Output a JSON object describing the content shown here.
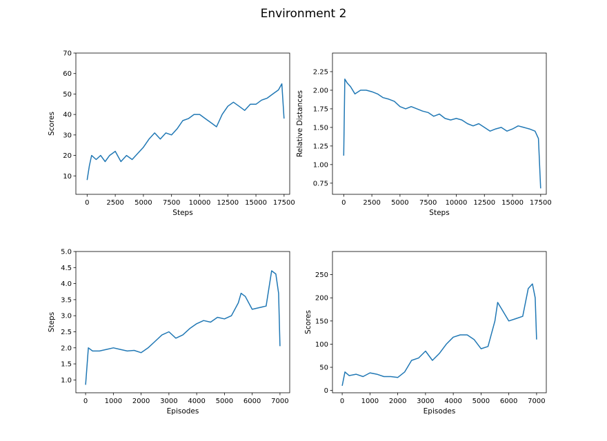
{
  "figure": {
    "title": "Environment 2"
  },
  "chart_data": [
    {
      "type": "line",
      "xlabel": "Steps",
      "ylabel": "Scores",
      "xlim": [
        -1000,
        18000
      ],
      "ylim": [
        1,
        70
      ],
      "xticks": [
        0,
        2500,
        5000,
        7500,
        10000,
        12500,
        15000,
        17500
      ],
      "yticks": [
        10,
        20,
        30,
        40,
        50,
        60,
        70
      ],
      "ytick_format": "int",
      "color": "#1f77b4",
      "series": [
        {
          "x": [
            0,
            200,
            400,
            800,
            1200,
            1600,
            2000,
            2500,
            3000,
            3500,
            4000,
            4500,
            5000,
            5500,
            6000,
            6500,
            7000,
            7500,
            8000,
            8500,
            9000,
            9500,
            10000,
            10500,
            11000,
            11500,
            12000,
            12500,
            13000,
            13500,
            14000,
            14500,
            15000,
            15500,
            16000,
            16500,
            17000,
            17300,
            17500
          ],
          "y": [
            8,
            15,
            20,
            18,
            20,
            17,
            20,
            22,
            17,
            20,
            18,
            21,
            24,
            28,
            31,
            28,
            31,
            30,
            33,
            37,
            38,
            40,
            40,
            38,
            36,
            34,
            40,
            44,
            46,
            44,
            42,
            45,
            45,
            47,
            48,
            50,
            52,
            55,
            38
          ]
        }
      ]
    },
    {
      "type": "line",
      "xlabel": "Steps",
      "ylabel": "Relative Distances",
      "xlim": [
        -1000,
        18000
      ],
      "ylim": [
        0.6,
        2.5
      ],
      "xticks": [
        0,
        2500,
        5000,
        7500,
        10000,
        12500,
        15000,
        17500
      ],
      "yticks": [
        0.75,
        1.0,
        1.25,
        1.5,
        1.75,
        2.0,
        2.25
      ],
      "ytick_format": "2dp",
      "color": "#1f77b4",
      "series": [
        {
          "x": [
            0,
            100,
            300,
            600,
            1000,
            1500,
            2000,
            2500,
            3000,
            3500,
            4000,
            4500,
            5000,
            5500,
            6000,
            6500,
            7000,
            7500,
            8000,
            8500,
            9000,
            9500,
            10000,
            10500,
            11000,
            11500,
            12000,
            12500,
            13000,
            13500,
            14000,
            14500,
            15000,
            15500,
            16000,
            16500,
            17000,
            17300,
            17500
          ],
          "y": [
            1.12,
            2.15,
            2.1,
            2.05,
            1.95,
            2.0,
            2.0,
            1.98,
            1.95,
            1.9,
            1.88,
            1.85,
            1.78,
            1.75,
            1.78,
            1.75,
            1.72,
            1.7,
            1.65,
            1.68,
            1.62,
            1.6,
            1.62,
            1.6,
            1.55,
            1.52,
            1.55,
            1.5,
            1.45,
            1.48,
            1.5,
            1.45,
            1.48,
            1.52,
            1.5,
            1.48,
            1.45,
            1.35,
            0.68
          ]
        }
      ]
    },
    {
      "type": "line",
      "xlabel": "Episodes",
      "ylabel": "Steps",
      "xlim": [
        -350,
        7350
      ],
      "ylim": [
        0.6,
        5.0
      ],
      "xticks": [
        0,
        1000,
        2000,
        3000,
        4000,
        5000,
        6000,
        7000
      ],
      "yticks": [
        1.0,
        1.5,
        2.0,
        2.5,
        3.0,
        3.5,
        4.0,
        4.5,
        5.0
      ],
      "ytick_format": "1dp",
      "color": "#1f77b4",
      "series": [
        {
          "x": [
            0,
            100,
            250,
            500,
            750,
            1000,
            1250,
            1500,
            1750,
            2000,
            2250,
            2500,
            2750,
            3000,
            3250,
            3500,
            3750,
            4000,
            4250,
            4500,
            4750,
            5000,
            5250,
            5500,
            5600,
            5750,
            6000,
            6250,
            6500,
            6700,
            6850,
            6950,
            7000
          ],
          "y": [
            0.85,
            2.0,
            1.9,
            1.9,
            1.95,
            2.0,
            1.95,
            1.9,
            1.92,
            1.85,
            2.0,
            2.2,
            2.4,
            2.5,
            2.3,
            2.4,
            2.6,
            2.75,
            2.85,
            2.8,
            2.95,
            2.9,
            3.0,
            3.4,
            3.7,
            3.6,
            3.2,
            3.25,
            3.3,
            4.4,
            4.3,
            3.7,
            2.05
          ]
        }
      ]
    },
    {
      "type": "line",
      "xlabel": "Episodes",
      "ylabel": "Scores",
      "xlim": [
        -350,
        7350
      ],
      "ylim": [
        -5,
        300
      ],
      "xticks": [
        0,
        1000,
        2000,
        3000,
        4000,
        5000,
        6000,
        7000
      ],
      "yticks": [
        0,
        50,
        100,
        150,
        200,
        250
      ],
      "ytick_format": "int",
      "color": "#1f77b4",
      "series": [
        {
          "x": [
            0,
            100,
            250,
            500,
            750,
            1000,
            1250,
            1500,
            1750,
            2000,
            2250,
            2500,
            2750,
            3000,
            3250,
            3500,
            3750,
            4000,
            4250,
            4500,
            4750,
            5000,
            5250,
            5500,
            5600,
            5750,
            6000,
            6250,
            6500,
            6700,
            6850,
            6950,
            7000
          ],
          "y": [
            10,
            40,
            32,
            35,
            30,
            38,
            35,
            30,
            30,
            28,
            40,
            65,
            70,
            85,
            65,
            80,
            100,
            115,
            120,
            120,
            110,
            90,
            95,
            150,
            190,
            175,
            150,
            155,
            160,
            220,
            230,
            200,
            110
          ]
        }
      ]
    }
  ]
}
